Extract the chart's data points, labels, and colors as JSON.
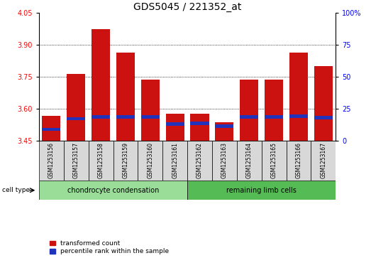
{
  "title": "GDS5045 / 221352_at",
  "samples": [
    "GSM1253156",
    "GSM1253157",
    "GSM1253158",
    "GSM1253159",
    "GSM1253160",
    "GSM1253161",
    "GSM1253162",
    "GSM1253163",
    "GSM1253164",
    "GSM1253165",
    "GSM1253166",
    "GSM1253167"
  ],
  "bar_tops": [
    3.565,
    3.762,
    3.975,
    3.865,
    3.735,
    3.575,
    3.578,
    3.535,
    3.735,
    3.738,
    3.865,
    3.8
  ],
  "bar_bottom": 3.45,
  "blue_positions": [
    3.503,
    3.553,
    3.562,
    3.562,
    3.562,
    3.528,
    3.532,
    3.518,
    3.562,
    3.562,
    3.565,
    3.558
  ],
  "blue_bar_height": 0.016,
  "ylim_left": [
    3.45,
    4.05
  ],
  "yticks_left": [
    3.45,
    3.6,
    3.75,
    3.9,
    4.05
  ],
  "ylim_right": [
    0,
    100
  ],
  "yticks_right": [
    0,
    25,
    50,
    75,
    100
  ],
  "ytick_labels_right": [
    "0",
    "25",
    "50",
    "75",
    "100%"
  ],
  "grid_values": [
    3.6,
    3.75,
    3.9
  ],
  "bar_color": "#cc1111",
  "blue_color": "#2233bb",
  "group1_label": "chondrocyte condensation",
  "group2_label": "remaining limb cells",
  "group1_indices": [
    0,
    1,
    2,
    3,
    4,
    5
  ],
  "group2_indices": [
    6,
    7,
    8,
    9,
    10,
    11
  ],
  "cell_type_label": "cell type",
  "legend1": "transformed count",
  "legend2": "percentile rank within the sample",
  "sample_bg_color": "#d8d8d8",
  "group1_color": "#99dd99",
  "group2_color": "#55bb55",
  "title_fontsize": 10,
  "tick_fontsize": 7,
  "sample_fontsize": 5.5,
  "group_fontsize": 7,
  "legend_fontsize": 6.5
}
